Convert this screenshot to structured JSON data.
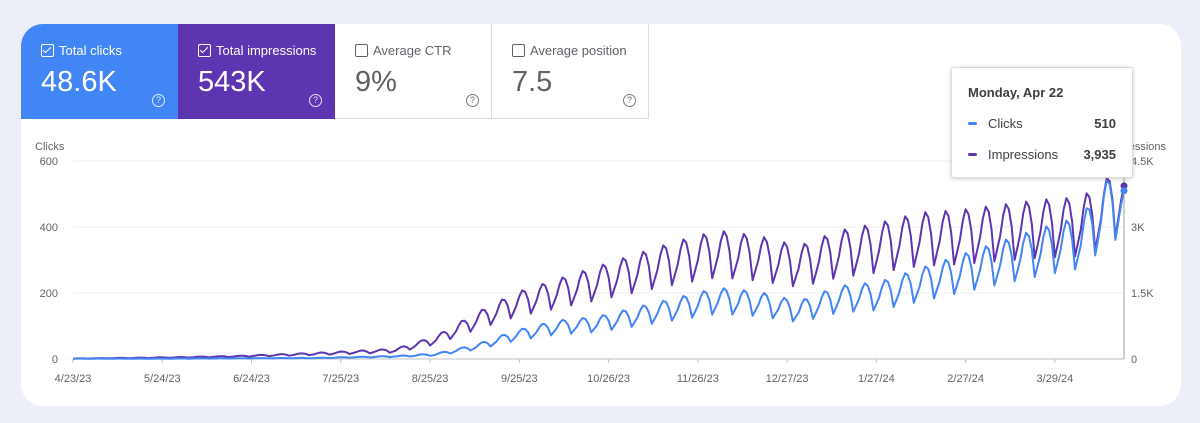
{
  "metrics": [
    {
      "label": "Total clicks",
      "value": "48.6K",
      "checked": true
    },
    {
      "label": "Total impressions",
      "value": "543K",
      "checked": true
    },
    {
      "label": "Average CTR",
      "value": "9%",
      "checked": false
    },
    {
      "label": "Average position",
      "value": "7.5",
      "checked": false
    }
  ],
  "help_glyph": "?",
  "tooltip": {
    "date": "Monday, Apr 22",
    "rows": [
      {
        "label": "Clicks",
        "value": "510",
        "color": "#4285f4"
      },
      {
        "label": "Impressions",
        "value": "3,935",
        "color": "#5e35b1"
      }
    ]
  },
  "chart_data": {
    "type": "line",
    "left_axis": {
      "title": "Clicks",
      "range": [
        0,
        600
      ],
      "ticks": [
        "0",
        "200",
        "400",
        "600"
      ]
    },
    "right_axis": {
      "title": "Impressions",
      "range": [
        0,
        4500
      ],
      "ticks": [
        "0",
        "1.5K",
        "3K",
        "4.5K"
      ]
    },
    "x_start": "2023-04-23",
    "x_end": "2024-04-22",
    "x_tick_labels": [
      "4/23/23",
      "5/24/23",
      "6/24/23",
      "7/25/23",
      "8/25/23",
      "9/25/23",
      "10/26/23",
      "11/26/23",
      "12/27/23",
      "1/27/24",
      "2/27/24",
      "3/29/24"
    ],
    "series": [
      {
        "name": "Clicks",
        "axis": "left",
        "color": "#4285f4",
        "weekly_samples": [
          {
            "day": 0,
            "value": 1
          },
          {
            "day": 28,
            "value": 1
          },
          {
            "day": 56,
            "value": 2
          },
          {
            "day": 84,
            "value": 3
          },
          {
            "day": 112,
            "value": 8
          },
          {
            "day": 126,
            "value": 14
          },
          {
            "day": 140,
            "value": 38
          },
          {
            "day": 154,
            "value": 75
          },
          {
            "day": 168,
            "value": 100
          },
          {
            "day": 182,
            "value": 110
          },
          {
            "day": 196,
            "value": 135
          },
          {
            "day": 210,
            "value": 160
          },
          {
            "day": 224,
            "value": 185
          },
          {
            "day": 238,
            "value": 175
          },
          {
            "day": 252,
            "value": 150
          },
          {
            "day": 266,
            "value": 190
          },
          {
            "day": 280,
            "value": 200
          },
          {
            "day": 294,
            "value": 235
          },
          {
            "day": 308,
            "value": 270
          },
          {
            "day": 322,
            "value": 305
          },
          {
            "day": 336,
            "value": 340
          },
          {
            "day": 350,
            "value": 370
          },
          {
            "day": 358,
            "value": 455
          },
          {
            "day": 365,
            "value": 510
          }
        ]
      },
      {
        "name": "Impressions",
        "axis": "right",
        "color": "#5e35b1",
        "weekly_samples": [
          {
            "day": 0,
            "value": 10
          },
          {
            "day": 28,
            "value": 30
          },
          {
            "day": 56,
            "value": 60
          },
          {
            "day": 84,
            "value": 120
          },
          {
            "day": 112,
            "value": 200
          },
          {
            "day": 126,
            "value": 450
          },
          {
            "day": 140,
            "value": 900
          },
          {
            "day": 154,
            "value": 1300
          },
          {
            "day": 168,
            "value": 1550
          },
          {
            "day": 182,
            "value": 1800
          },
          {
            "day": 196,
            "value": 2050
          },
          {
            "day": 210,
            "value": 2300
          },
          {
            "day": 224,
            "value": 2500
          },
          {
            "day": 238,
            "value": 2400
          },
          {
            "day": 252,
            "value": 2200
          },
          {
            "day": 266,
            "value": 2500
          },
          {
            "day": 280,
            "value": 2650
          },
          {
            "day": 294,
            "value": 2850
          },
          {
            "day": 308,
            "value": 2900
          },
          {
            "day": 322,
            "value": 3000
          },
          {
            "day": 336,
            "value": 3100
          },
          {
            "day": 350,
            "value": 3150
          },
          {
            "day": 358,
            "value": 3450
          },
          {
            "day": 365,
            "value": 3935
          }
        ]
      }
    ]
  }
}
